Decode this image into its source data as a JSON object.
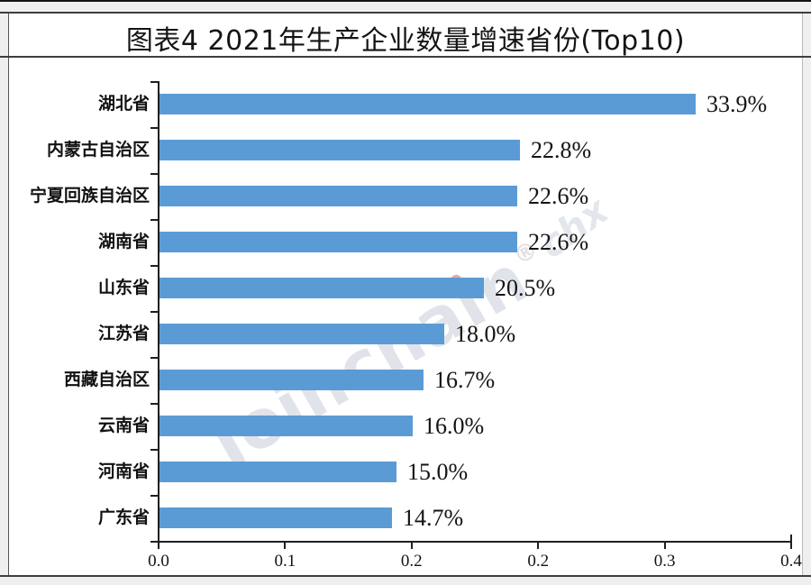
{
  "page": {
    "title": "图表4  2021年生产企业数量增速省份(Top10)"
  },
  "watermark": {
    "part1": "Jo",
    "i1": "i",
    "part2": "ncha",
    "i2": "i",
    "part3": "n",
    "reg": "®",
    "suffix": "chx"
  },
  "chart_data": {
    "type": "bar",
    "orientation": "horizontal",
    "title": "图表4  2021年生产企业数量增速省份(Top10)",
    "categories": [
      "湖北省",
      "内蒙古自治区",
      "宁夏回族自治区",
      "湖南省",
      "山东省",
      "江苏省",
      "西藏自治区",
      "云南省",
      "河南省",
      "广东省"
    ],
    "values": [
      0.339,
      0.228,
      0.226,
      0.226,
      0.205,
      0.18,
      0.167,
      0.16,
      0.15,
      0.147
    ],
    "value_labels": [
      "33.9%",
      "22.8%",
      "22.6%",
      "22.6%",
      "20.5%",
      "18.0%",
      "16.7%",
      "16.0%",
      "15.0%",
      "14.7%"
    ],
    "xlabel": "",
    "ylabel": "",
    "xlim": [
      0,
      0.4
    ],
    "x_tick_labels": [
      "0.0",
      "0.1",
      "0.2",
      "0.2",
      "0.3",
      "0.4"
    ],
    "grid": false,
    "legend_position": "none",
    "bar_color": "#5B9BD5",
    "axis_color": "#1f1f1f",
    "label_color": "#141414"
  }
}
